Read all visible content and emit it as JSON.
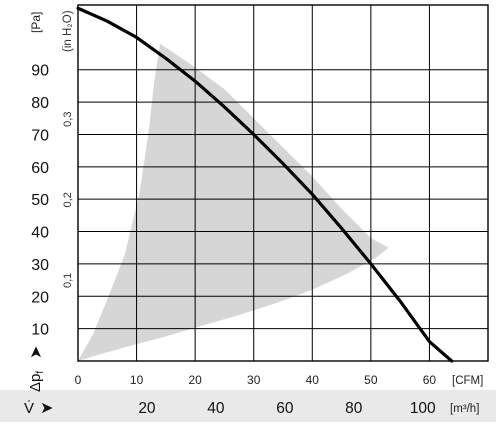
{
  "chart_data": {
    "type": "line",
    "title": "",
    "series": [
      {
        "values": [
          {
            "x": 0,
            "y": 109
          },
          {
            "x": 5,
            "y": 105
          },
          {
            "x": 10,
            "y": 100
          },
          {
            "x": 15,
            "y": 93.5
          },
          {
            "x": 20,
            "y": 86.5
          },
          {
            "x": 25,
            "y": 78.5
          },
          {
            "x": 30,
            "y": 70
          },
          {
            "x": 35,
            "y": 61
          },
          {
            "x": 40,
            "y": 51.5
          },
          {
            "x": 45,
            "y": 41
          },
          {
            "x": 50,
            "y": 30
          },
          {
            "x": 55,
            "y": 18.5
          },
          {
            "x": 60,
            "y": 6
          },
          {
            "x": 63.8,
            "y": 0
          }
        ]
      }
    ],
    "operating_region": [
      {
        "x": 0,
        "y": 0
      },
      {
        "x": 2.5,
        "y": 8
      },
      {
        "x": 5,
        "y": 19
      },
      {
        "x": 8,
        "y": 33
      },
      {
        "x": 10.5,
        "y": 52
      },
      {
        "x": 12,
        "y": 70
      },
      {
        "x": 13,
        "y": 86
      },
      {
        "x": 14,
        "y": 98
      },
      {
        "x": 19,
        "y": 92
      },
      {
        "x": 25,
        "y": 84
      },
      {
        "x": 30,
        "y": 75
      },
      {
        "x": 35,
        "y": 66
      },
      {
        "x": 40,
        "y": 57
      },
      {
        "x": 45,
        "y": 47
      },
      {
        "x": 50,
        "y": 38
      },
      {
        "x": 53,
        "y": 35
      },
      {
        "x": 51,
        "y": 32
      },
      {
        "x": 46,
        "y": 27
      },
      {
        "x": 40,
        "y": 22
      },
      {
        "x": 34,
        "y": 18
      },
      {
        "x": 28,
        "y": 14.5
      },
      {
        "x": 21,
        "y": 10.8
      },
      {
        "x": 15,
        "y": 7.6
      },
      {
        "x": 9,
        "y": 4.7
      },
      {
        "x": 4,
        "y": 2.2
      },
      {
        "x": 0,
        "y": 0
      }
    ],
    "region_color": "#d6d6d6",
    "curve_color": "#000000",
    "grid": true,
    "x_axis": {
      "unit": "[CFM]",
      "range": [
        0,
        70
      ],
      "ticks": [
        0,
        10,
        20,
        30,
        40,
        50,
        60
      ],
      "tick_labels": [
        "0",
        "10",
        "20",
        "30",
        "40",
        "50",
        "60"
      ]
    },
    "x2_axis": {
      "symbol": "V̇",
      "arrow": "➤",
      "unit": "[m³/h]",
      "ticks": [
        20,
        40,
        60,
        80,
        100
      ],
      "tick_labels": [
        "20",
        "40",
        "60",
        "80",
        "100"
      ],
      "cfm_per_unit": 0.5886
    },
    "y_axis": {
      "unit": "[Pa]",
      "symbol_main": "Δp",
      "symbol_sub": "f",
      "arrow": "➤",
      "range": [
        0,
        110
      ],
      "ticks": [
        10,
        20,
        30,
        40,
        50,
        60,
        70,
        80,
        90
      ],
      "tick_labels": [
        "10",
        "20",
        "30",
        "40",
        "50",
        "60",
        "70",
        "80",
        "90"
      ]
    },
    "y2_axis": {
      "unit": "(in H₂O)",
      "ticks": [
        0.1,
        0.2,
        0.3
      ],
      "tick_labels": [
        "0,1",
        "0,2",
        "0,3"
      ],
      "pa_per_unit": 249.09
    }
  }
}
